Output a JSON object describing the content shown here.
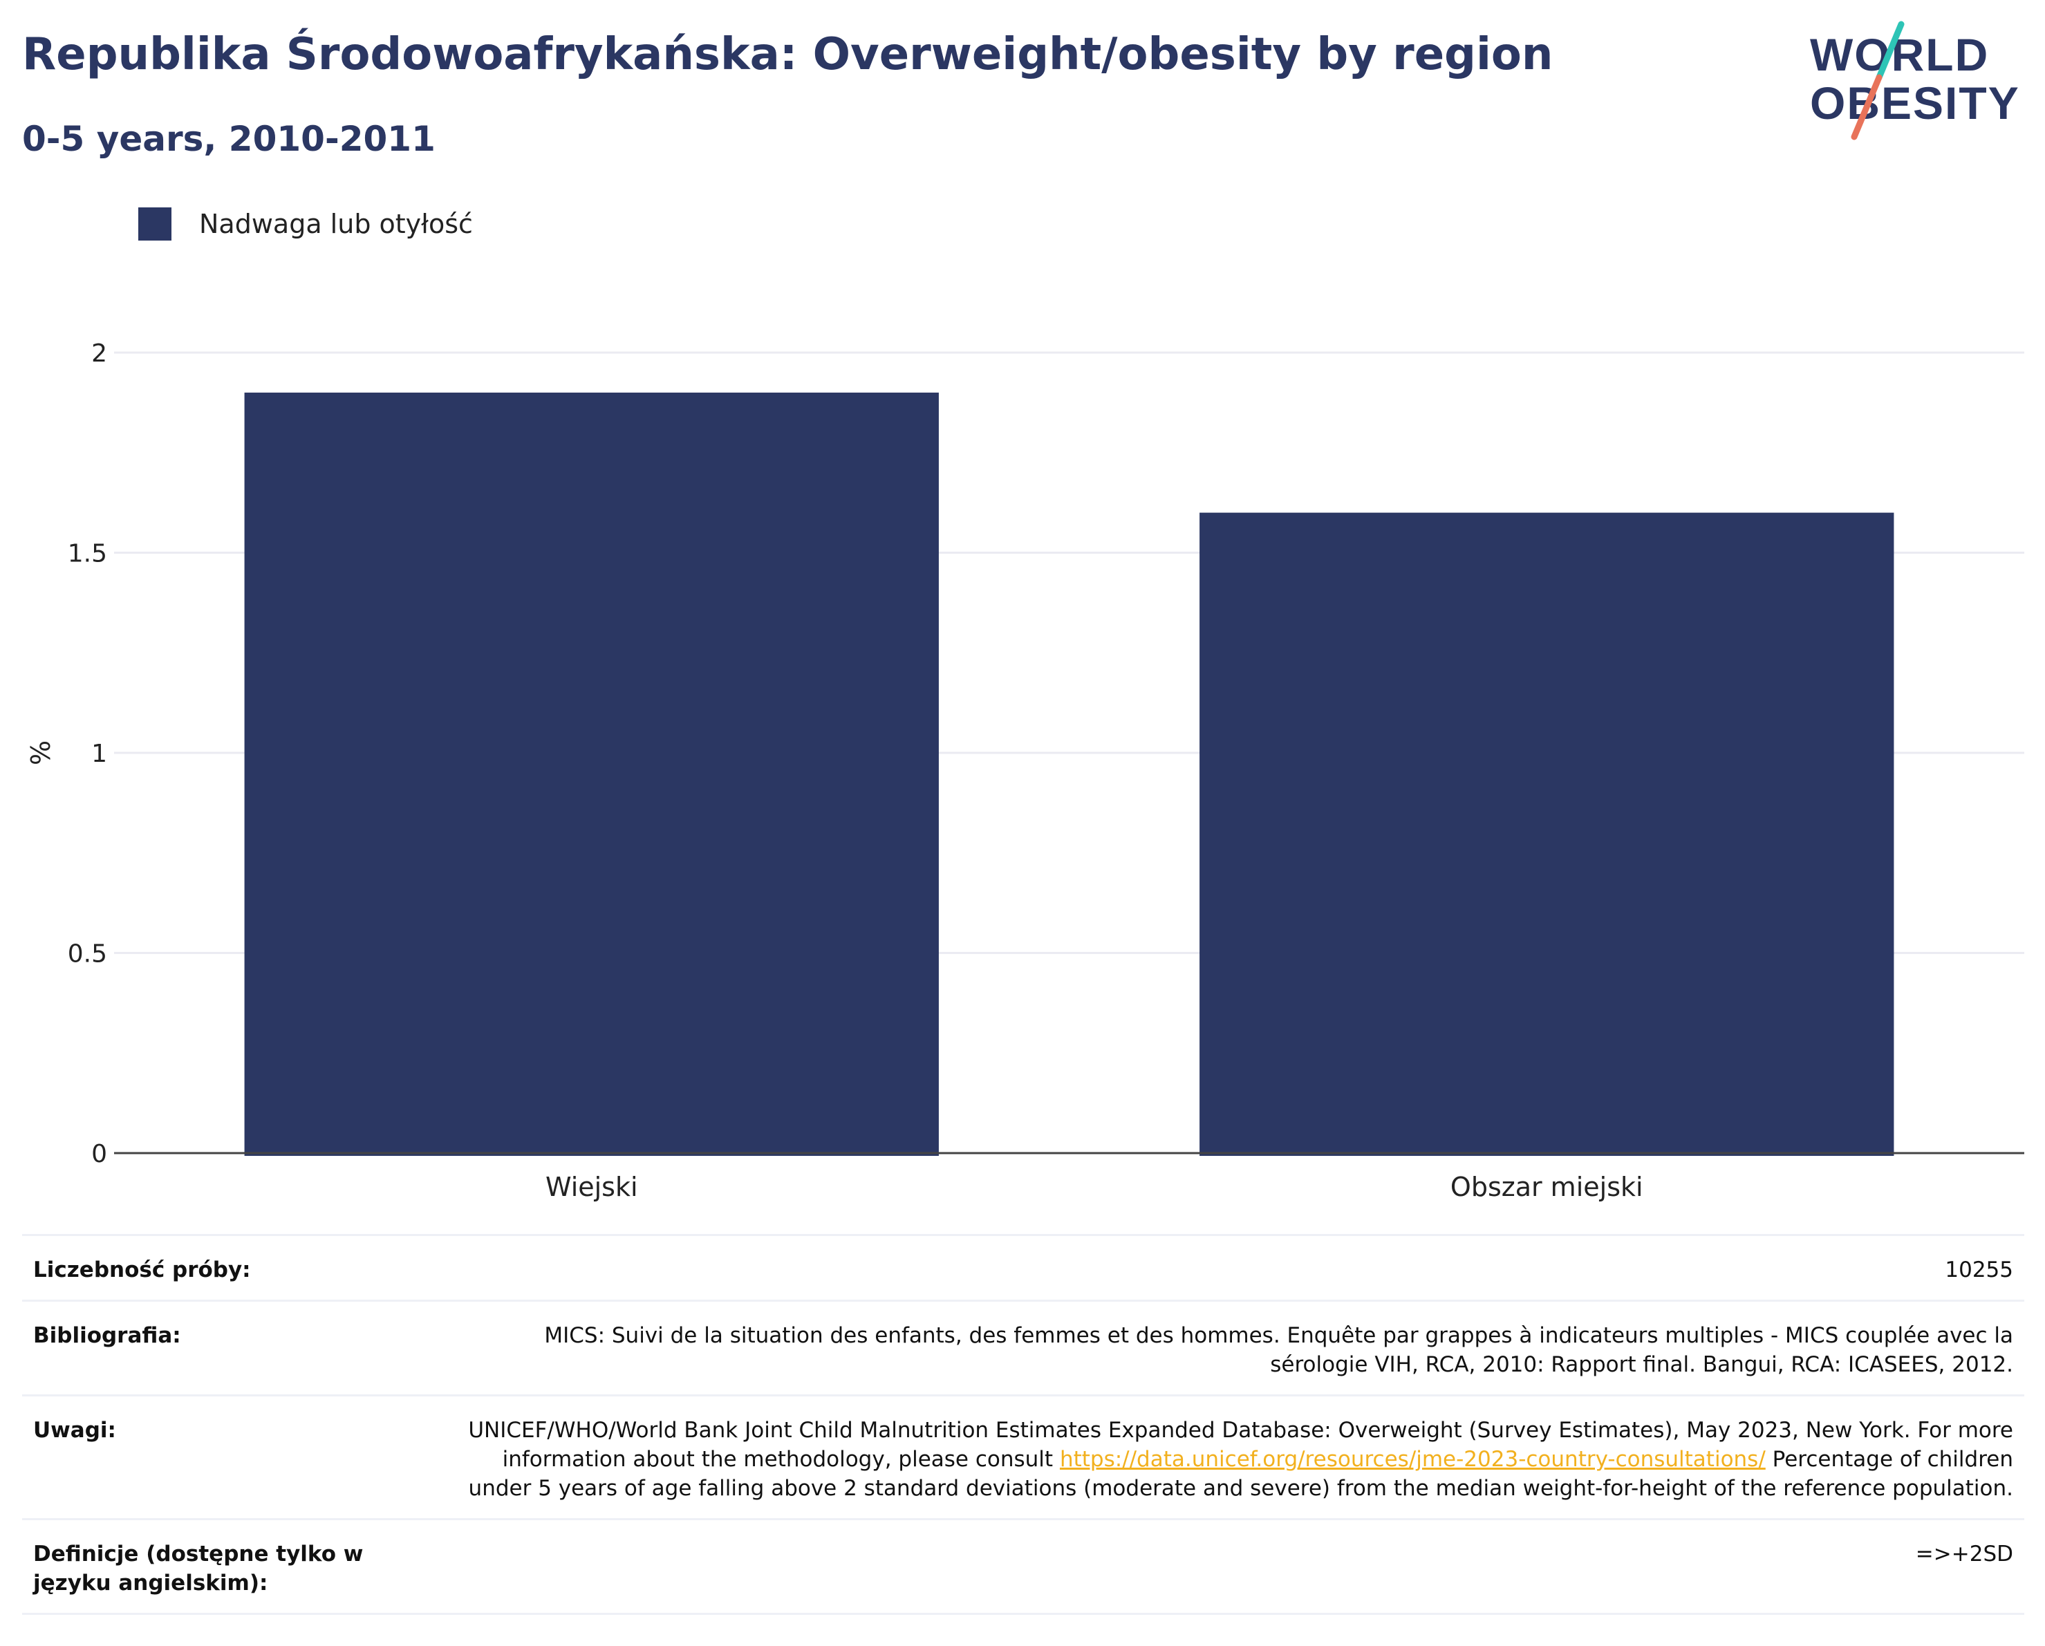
{
  "header": {
    "title": "Republika Środowoafrykańska: Overweight/obesity by region",
    "subtitle": "0-5 years, 2010-2011"
  },
  "logo": {
    "line1": "WORLD",
    "line2": "OBESITY",
    "colors": {
      "text": "#2b3763",
      "slash_top": "#2ec4b6",
      "slash_bottom": "#e8735a"
    }
  },
  "legend": {
    "label": "Nadwaga lub otyłość",
    "color": "#2b3763"
  },
  "chart_data": {
    "type": "bar",
    "categories": [
      "Wiejski",
      "Obszar miejski"
    ],
    "series": [
      {
        "name": "Nadwaga lub otyłość",
        "values": [
          1.9,
          1.6
        ],
        "color": "#2b3763"
      }
    ],
    "ylabel": "%",
    "xlabel": "",
    "ylim": [
      0,
      2
    ],
    "yticks": [
      0,
      0.5,
      1,
      1.5,
      2
    ],
    "ytick_labels": [
      "0",
      "0.5",
      "1",
      "1.5",
      "2"
    ],
    "grid": true
  },
  "info": {
    "sample_label": "Liczebność próby:",
    "sample_value": "10255",
    "biblio_label": "Bibliografia:",
    "biblio_value": "MICS: Suivi de la situation des enfants, des femmes et des hommes. Enquête par grappes à indicateurs multiples - MICS couplée avec la sérologie VIH, RCA, 2010: Rapport final. Bangui, RCA: ICASEES, 2012.",
    "notes_label": "Uwagi:",
    "notes_text1": "UNICEF/WHO/World Bank Joint Child Malnutrition Estimates Expanded Database: Overweight (Survey Estimates), May 2023, New York. For more information about the methodology, please consult ",
    "notes_link": "https://data.unicef.org/resources/jme-2023-country-consultations/",
    "notes_text2": " Percentage of children under 5 years of age falling above 2 standard deviations (moderate and severe) from the median weight-for-height of the reference population.",
    "def_label": "Definicje (dostępne tylko w języku angielskim):",
    "def_value": "=>+2SD"
  }
}
